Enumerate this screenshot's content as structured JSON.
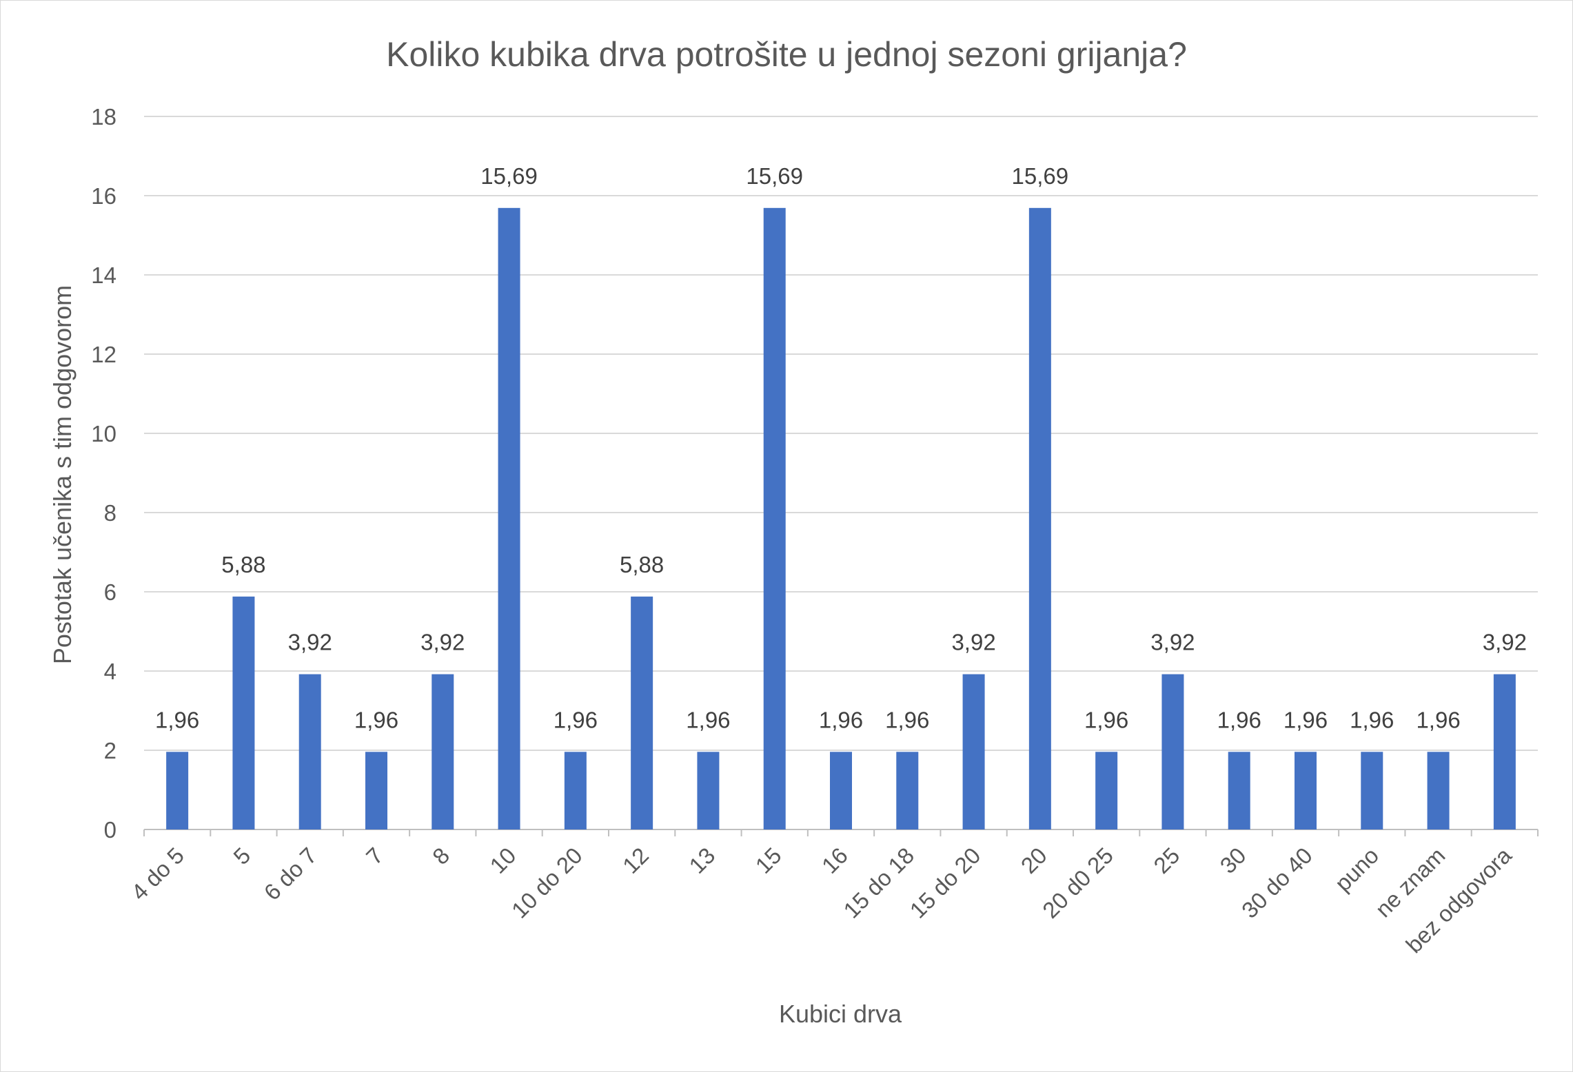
{
  "chart_data": {
    "type": "bar",
    "title": "Koliko kubika drva potrošite u jednoj sezoni grijanja?",
    "xlabel": "Kubici drva",
    "ylabel": "Postotak učenika s tim odgovorom",
    "ylim": [
      0,
      18
    ],
    "yticks": [
      "0",
      "2",
      "4",
      "6",
      "8",
      "10",
      "12",
      "14",
      "16",
      "18"
    ],
    "categories": [
      "4 do 5",
      "5",
      "6 do 7",
      "7",
      "8",
      "10",
      "10 do 20",
      "12",
      "13",
      "15",
      "16",
      "15 do 18",
      "15 do 20",
      "20",
      "20 d0 25",
      "25",
      "30",
      "30 do 40",
      "puno",
      "ne znam",
      "bez odgovora"
    ],
    "values": [
      1.96,
      5.88,
      3.92,
      1.96,
      3.92,
      15.69,
      1.96,
      5.88,
      1.96,
      15.69,
      1.96,
      1.96,
      3.92,
      15.69,
      1.96,
      3.92,
      1.96,
      1.96,
      1.96,
      1.96,
      3.92
    ],
    "data_labels": [
      "1,96",
      "5,88",
      "3,92",
      "1,96",
      "3,92",
      "15,69",
      "1,96",
      "5,88",
      "1,96",
      "15,69",
      "1,96",
      "1,96",
      "3,92",
      "15,69",
      "1,96",
      "3,92",
      "1,96",
      "1,96",
      "1,96",
      "1,96",
      "3,92"
    ],
    "bar_color": "#4472c4",
    "grid": true,
    "legend": "none"
  }
}
